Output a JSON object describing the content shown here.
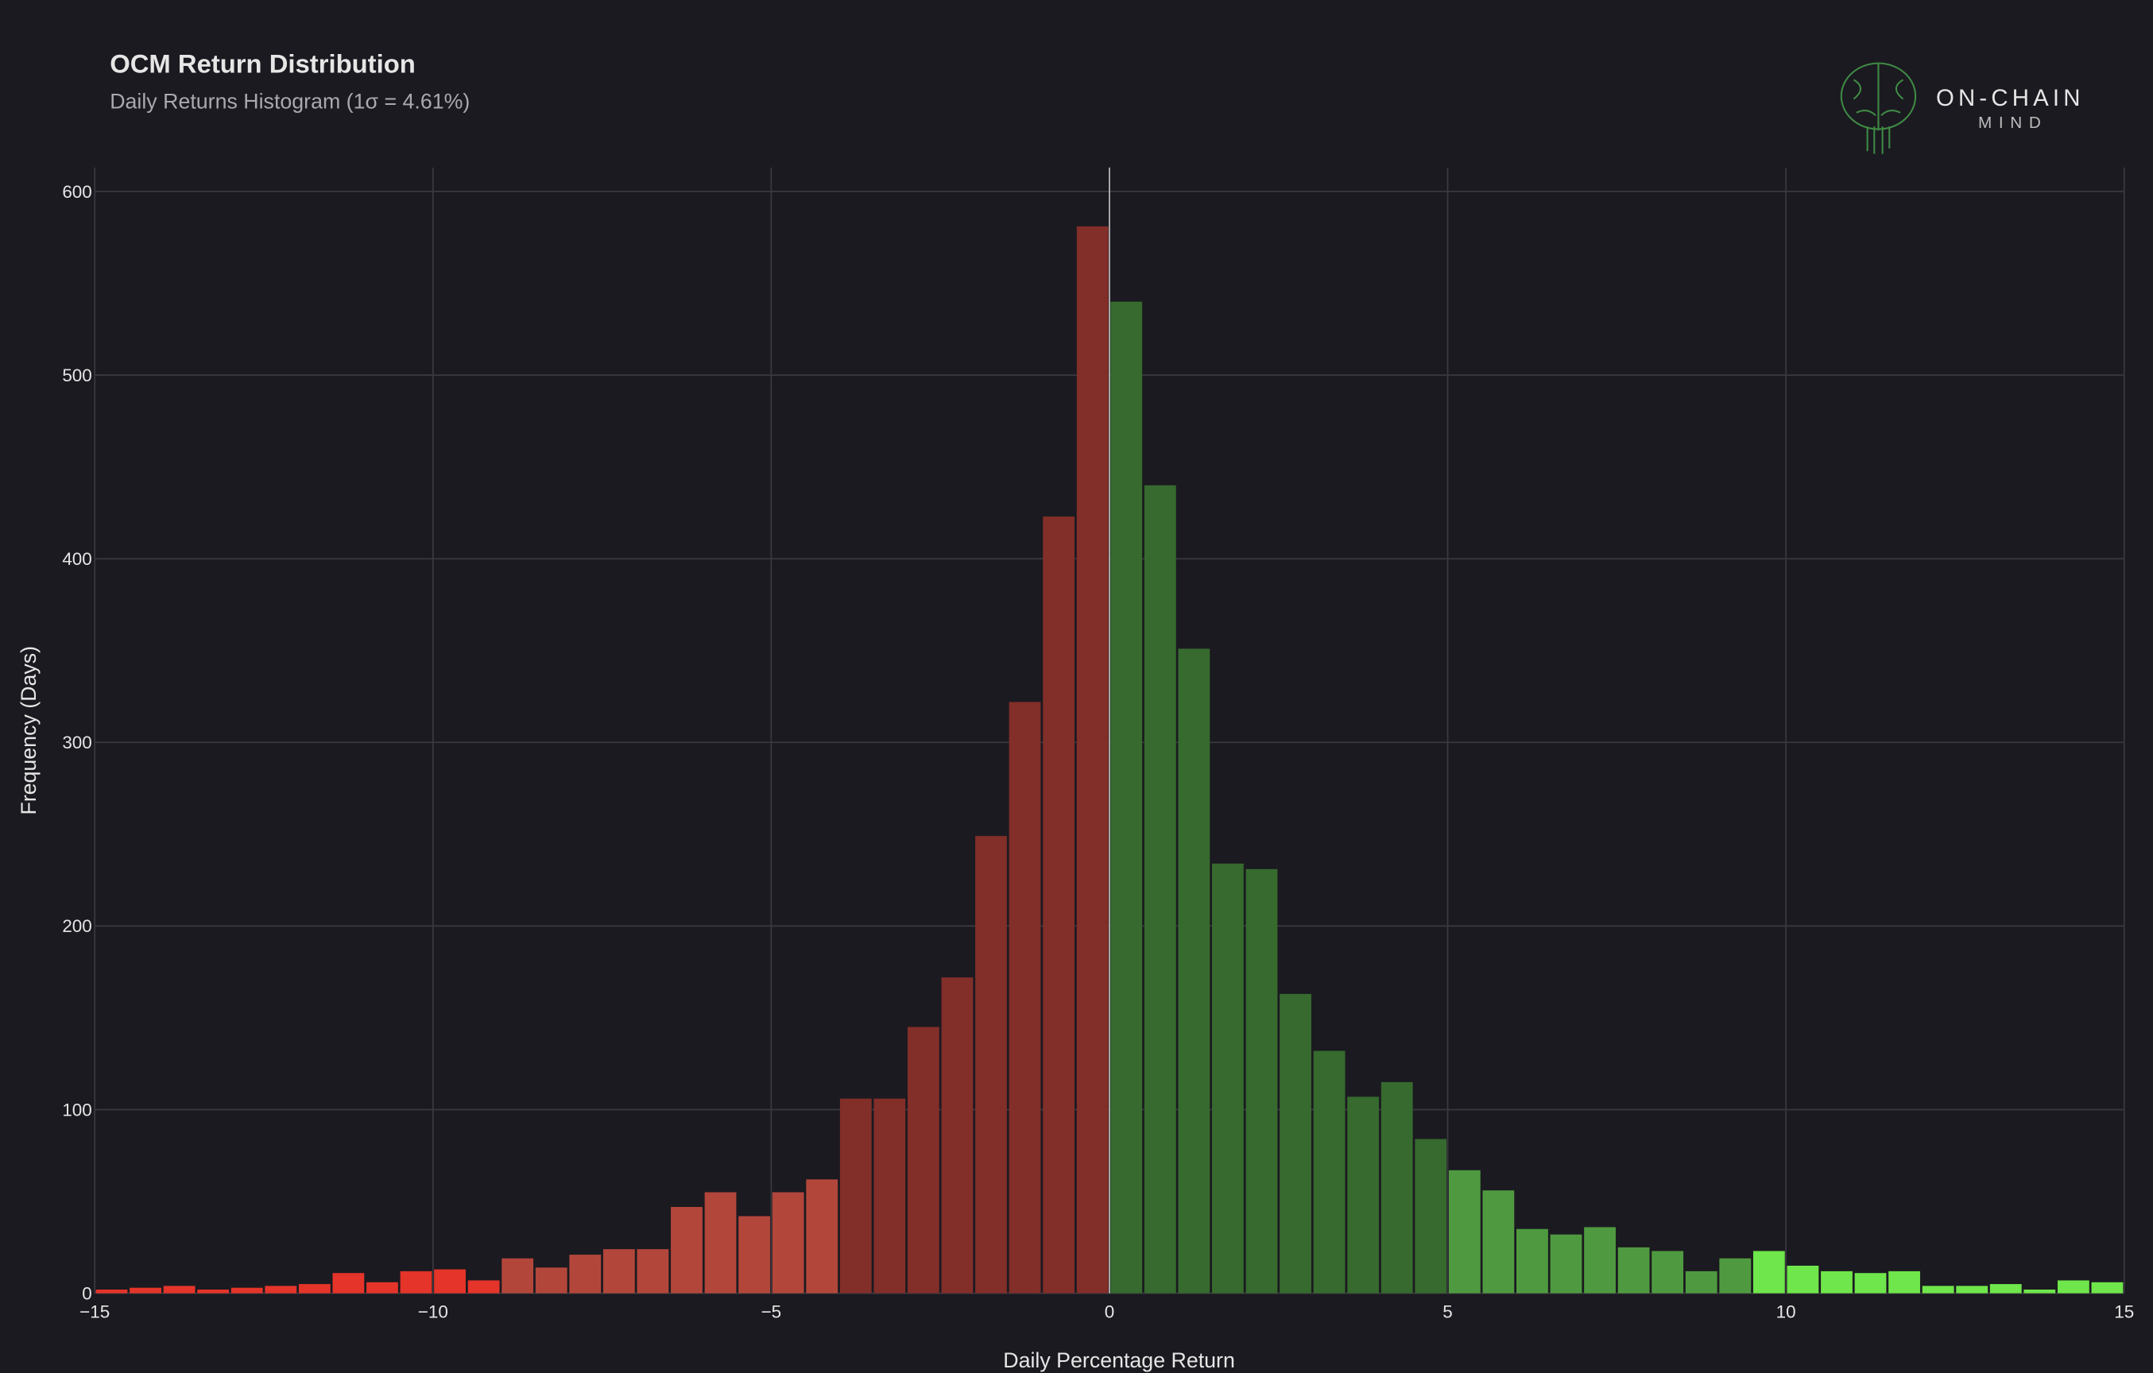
{
  "chart_data": {
    "type": "histogram",
    "title": "OCM Return Distribution",
    "subtitle": "Daily Returns Histogram (1σ = 4.61%)",
    "x_label": "Daily Percentage Return",
    "y_label": "Frequency (Days)",
    "logo": {
      "line1": "ON-CHAIN",
      "line2": "MIND"
    },
    "bins": [
      -15,
      -14.5,
      -14,
      -13.5,
      -13,
      -12.5,
      -12,
      -11.5,
      -11,
      -10.5,
      -10,
      -9.5,
      -9,
      -8.5,
      -8,
      -7.5,
      -7,
      -6.5,
      -6,
      -5.5,
      -5,
      -4.5,
      -4,
      -3.5,
      -3,
      -2.5,
      -2,
      -1.5,
      -1,
      -0.5,
      0,
      0.5,
      1,
      1.5,
      2,
      2.5,
      3,
      3.5,
      4,
      4.5,
      5,
      5.5,
      6,
      6.5,
      7,
      7.5,
      8,
      8.5,
      9,
      9.5,
      10,
      10.5,
      11,
      11.5,
      12,
      12.5,
      13,
      13.5,
      14,
      14.5,
      15
    ],
    "values": [
      2,
      3,
      4,
      2,
      3,
      4,
      5,
      11,
      6,
      12,
      13,
      7,
      19,
      14,
      21,
      24,
      24,
      47,
      55,
      42,
      55,
      62,
      106,
      106,
      145,
      172,
      249,
      322,
      423,
      581,
      540,
      440,
      351,
      234,
      231,
      163,
      132,
      107,
      115,
      84,
      67,
      56,
      35,
      32,
      36,
      25,
      23,
      12,
      19,
      23,
      15,
      12,
      11,
      12,
      4,
      4,
      5,
      2,
      7,
      6
    ],
    "colors": [
      "#e5342a",
      "#e5342a",
      "#e5342a",
      "#e5342a",
      "#e5342a",
      "#e5342a",
      "#e5342a",
      "#e5342a",
      "#e5342a",
      "#e5342a",
      "#e5342a",
      "#e5342a",
      "#b3463b",
      "#b3463b",
      "#b3463b",
      "#b3463b",
      "#b3463b",
      "#b3463b",
      "#b3463b",
      "#b3463b",
      "#b3463b",
      "#b3463b",
      "#822e29",
      "#822e29",
      "#822e29",
      "#822e29",
      "#822e29",
      "#822e29",
      "#822e29",
      "#822e29",
      "#366a2e",
      "#366a2e",
      "#366a2e",
      "#366a2e",
      "#366a2e",
      "#366a2e",
      "#366a2e",
      "#366a2e",
      "#366a2e",
      "#366a2e",
      "#4f9a40",
      "#4f9a40",
      "#4f9a40",
      "#4f9a40",
      "#4f9a40",
      "#4f9a40",
      "#4f9a40",
      "#4f9a40",
      "#4f9a40",
      "#6fe64b",
      "#6fe64b",
      "#6fe64b",
      "#6fe64b",
      "#6fe64b",
      "#6fe64b",
      "#6fe64b",
      "#6fe64b",
      "#6fe64b",
      "#6fe64b",
      "#6fe64b"
    ],
    "vline": 0,
    "xlim": [
      -15,
      15
    ],
    "ylim": [
      0,
      613
    ],
    "xticks": [
      {
        "value": -15,
        "label": "−15"
      },
      {
        "value": -10,
        "label": "−10"
      },
      {
        "value": -5,
        "label": "−5"
      },
      0,
      5,
      10,
      15
    ],
    "yticks": [
      0,
      100,
      200,
      300,
      400,
      500,
      600
    ],
    "grid": true
  }
}
